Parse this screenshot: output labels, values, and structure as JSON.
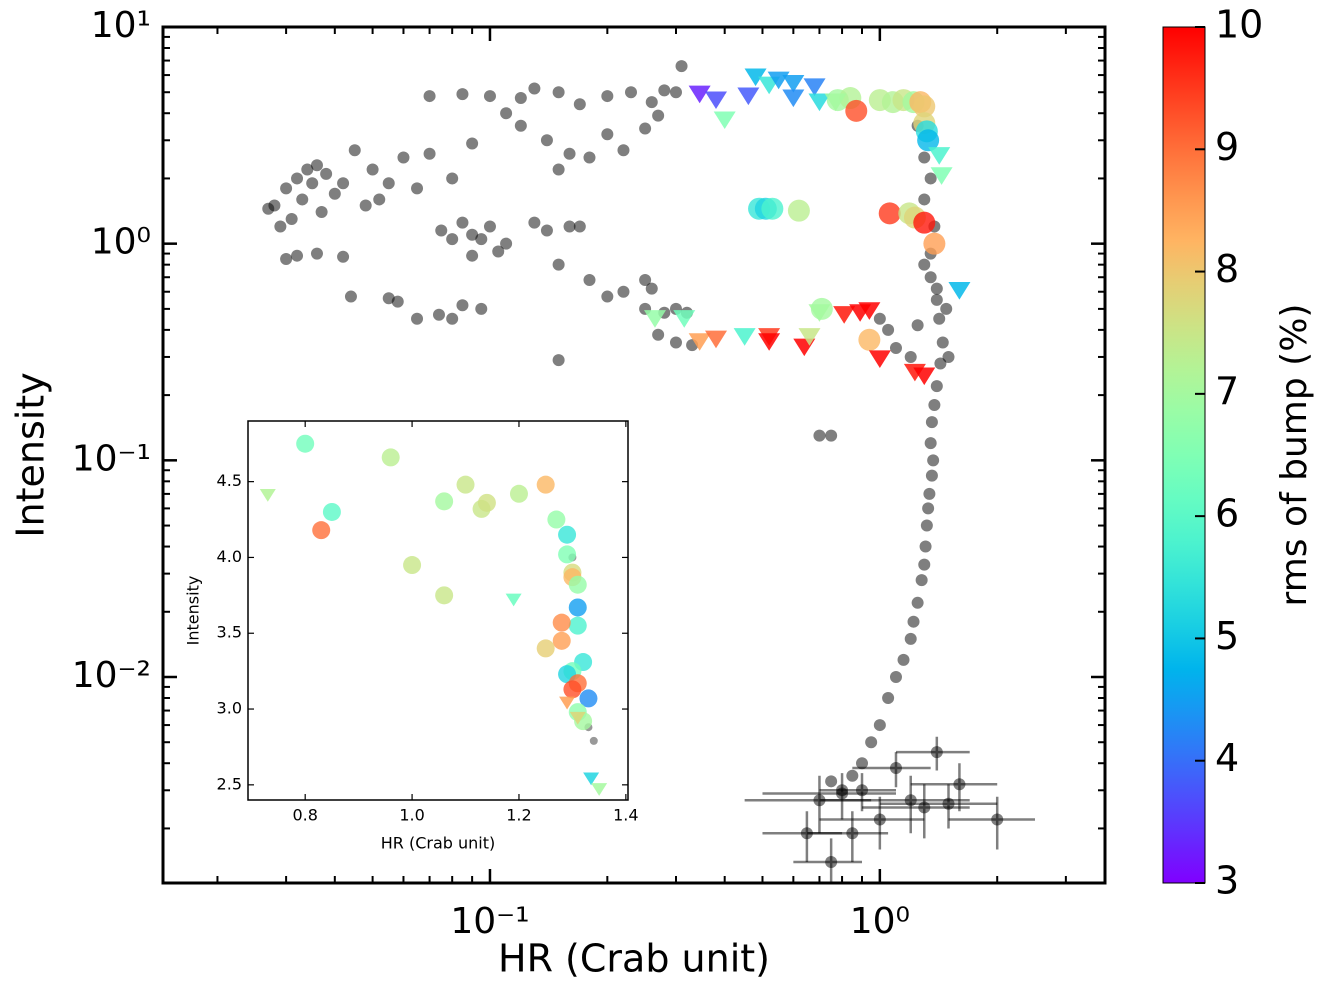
{
  "chart_data": [
    {
      "type": "scatter",
      "xlabel": "HR (Crab unit)",
      "ylabel": "Intensity",
      "xscale": "log",
      "yscale": "log",
      "xlim": [
        0.0145,
        3.78
      ],
      "ylim": [
        0.00112,
        10
      ],
      "xticks": [
        {
          "value": 0.1,
          "label": "10⁻¹"
        },
        {
          "value": 1,
          "label": "10⁰"
        }
      ],
      "yticks": [
        {
          "value": 0.01,
          "label": "10⁻²"
        },
        {
          "value": 0.1,
          "label": "10⁻¹"
        },
        {
          "value": 1,
          "label": "10⁰"
        },
        {
          "value": 10,
          "label": "10¹"
        }
      ],
      "colorbar": {
        "label": "rms of bump (%)",
        "colormap": "rainbow",
        "lim": [
          3,
          10
        ],
        "ticks": [
          3,
          4,
          5,
          6,
          7,
          8,
          9,
          10
        ]
      },
      "series": [
        {
          "marker": "circle",
          "color": "#000000",
          "alpha": 0.5,
          "x": [
            0.028,
            0.03,
            0.032,
            0.034,
            0.036,
            0.033,
            0.031,
            0.029,
            0.027,
            0.035,
            0.038,
            0.04,
            0.042,
            0.037,
            0.03,
            0.032,
            0.036,
            0.042,
            0.044,
            0.055,
            0.058,
            0.065,
            0.074,
            0.08,
            0.085,
            0.095,
            0.07,
            0.085,
            0.1,
            0.12,
            0.13,
            0.15,
            0.17,
            0.2,
            0.23,
            0.26,
            0.28,
            0.3,
            0.31,
            0.11,
            0.12,
            0.14,
            0.16,
            0.18,
            0.2,
            0.22,
            0.25,
            0.27,
            0.15,
            0.09,
            0.07,
            0.06,
            0.05,
            0.055,
            0.065,
            0.08,
            0.045,
            0.048,
            0.052,
            0.075,
            0.08,
            0.09,
            0.095,
            0.1,
            0.11,
            0.13,
            0.14,
            0.15,
            0.16,
            0.17,
            0.105,
            0.09,
            0.085,
            0.18,
            0.2,
            0.22,
            0.25,
            0.26,
            0.28,
            0.3,
            0.32,
            0.25,
            0.15,
            0.3,
            0.27,
            0.33,
            1.0,
            1.05,
            1.1,
            1.2,
            1.25,
            1.35,
            1.4,
            1.42,
            1.45,
            1.43,
            1.4,
            1.38,
            1.36,
            1.35,
            1.37,
            1.36,
            1.34,
            1.33,
            1.32,
            1.31,
            1.3,
            1.28,
            1.25,
            1.22,
            1.2,
            1.15,
            1.1,
            1.05,
            1.0,
            0.95,
            0.9,
            0.85,
            0.8,
            0.75,
            0.7,
            0.75,
            1.35,
            1.38,
            1.3,
            1.35,
            1.3,
            1.25,
            1.3,
            1.4,
            1.48,
            1.5
          ],
          "y": [
            1.5,
            1.8,
            2.0,
            2.2,
            2.3,
            1.6,
            1.3,
            1.2,
            1.45,
            1.9,
            2.1,
            1.7,
            1.9,
            1.4,
            0.85,
            0.88,
            0.9,
            0.87,
            0.57,
            0.56,
            0.54,
            0.45,
            0.47,
            0.45,
            0.52,
            0.5,
            4.8,
            4.9,
            4.8,
            4.7,
            5.2,
            5.0,
            4.4,
            4.8,
            5.0,
            4.5,
            5.1,
            5.0,
            6.6,
            4.0,
            3.5,
            3.0,
            2.6,
            2.5,
            3.2,
            2.7,
            3.4,
            3.9,
            2.2,
            2.9,
            2.6,
            2.5,
            2.2,
            1.9,
            1.8,
            2.0,
            2.7,
            1.5,
            1.6,
            1.15,
            1.05,
            1.1,
            1.05,
            1.2,
            1.0,
            1.25,
            1.15,
            0.8,
            1.2,
            1.2,
            0.92,
            0.88,
            1.25,
            0.68,
            0.57,
            0.6,
            0.68,
            0.62,
            0.48,
            0.5,
            0.48,
            0.5,
            0.29,
            0.35,
            0.38,
            0.34,
            0.45,
            0.4,
            0.33,
            0.3,
            0.42,
            0.7,
            0.55,
            0.45,
            0.35,
            0.28,
            0.22,
            0.18,
            0.15,
            0.12,
            0.1,
            0.085,
            0.07,
            0.06,
            0.05,
            0.04,
            0.033,
            0.028,
            0.022,
            0.018,
            0.015,
            0.012,
            0.01,
            0.008,
            0.006,
            0.005,
            0.004,
            0.0035,
            0.003,
            0.0033,
            0.13,
            0.13,
            0.9,
            1.2,
            1.6,
            2.0,
            2.5,
            3.5,
            0.8,
            0.62,
            0.5,
            0.3
          ]
        },
        {
          "marker": "circle",
          "color": "#000000",
          "alpha": 0.5,
          "x": [
            0.7,
            0.8,
            0.9,
            1.2,
            1.5,
            1.3,
            0.65,
            0.75,
            0.85,
            1.0,
            1.6,
            2.0,
            1.4,
            1.1
          ],
          "y": [
            0.0027,
            0.0029,
            0.003,
            0.0027,
            0.0026,
            0.0025,
            0.0019,
            0.0014,
            0.0019,
            0.0022,
            0.0032,
            0.0022,
            0.0045,
            0.0038
          ],
          "xerr": [
            0.25,
            0.3,
            0.2,
            0.5,
            0.5,
            0.4,
            0.15,
            0.15,
            0.2,
            0.3,
            0.4,
            0.5,
            0.3,
            0.25
          ],
          "yerr": [
            0.0008,
            0.0007,
            0.0006,
            0.0008,
            0.0006,
            0.0007,
            0.0005,
            0.0004,
            0.0005,
            0.0006,
            0.0008,
            0.0006,
            0.0008,
            0.0007
          ]
        },
        {
          "marker": "circle",
          "alpha": 0.8,
          "x": [
            0.78,
            0.84,
            1.0,
            1.08,
            1.15,
            1.22,
            1.27,
            1.3,
            1.3,
            1.32,
            1.33,
            0.87,
            0.49,
            0.51,
            0.53,
            0.62,
            1.06,
            1.19,
            1.23,
            1.3,
            1.38,
            0.71,
            0.94
          ],
          "y": [
            4.6,
            4.7,
            4.6,
            4.5,
            4.6,
            4.5,
            4.5,
            4.3,
            3.6,
            3.3,
            3.0,
            4.1,
            1.45,
            1.45,
            1.45,
            1.42,
            1.38,
            1.38,
            1.32,
            1.25,
            1.0,
            0.5,
            0.36
          ],
          "c": [
            7,
            7.2,
            7.3,
            7.2,
            7.5,
            7.0,
            8.2,
            8.0,
            7.8,
            5.3,
            4.8,
            9.3,
            5.5,
            5.2,
            5.8,
            7.3,
            9.5,
            7.5,
            7.8,
            9.8,
            8.5,
            7,
            8.2
          ]
        },
        {
          "marker": "triangle-down",
          "alpha": 0.85,
          "x": [
            0.345,
            0.38,
            0.4,
            0.46,
            0.48,
            0.52,
            0.55,
            0.6,
            0.6,
            0.68,
            0.7,
            0.77,
            1.42,
            1.44,
            1.6,
            0.265,
            0.315,
            0.345,
            0.38,
            0.45,
            0.52,
            0.52,
            0.64,
            0.66,
            0.7,
            0.81,
            0.89,
            0.94,
            1.0,
            1.23,
            1.3
          ],
          "y": [
            5.0,
            4.7,
            3.8,
            4.9,
            6.0,
            5.5,
            5.8,
            5.6,
            4.8,
            5.4,
            4.6,
            4.6,
            2.6,
            2.1,
            0.62,
            0.46,
            0.46,
            0.36,
            0.37,
            0.38,
            0.38,
            0.36,
            0.34,
            0.38,
            0.49,
            0.48,
            0.49,
            0.5,
            0.3,
            0.26,
            0.25
          ],
          "c": [
            3.3,
            3.7,
            6.5,
            3.8,
            4.8,
            5.5,
            4.5,
            4.5,
            4.3,
            4.2,
            5.3,
            7.0,
            5.8,
            6.5,
            4.8,
            6.8,
            6.3,
            8.5,
            9.0,
            5.8,
            9.5,
            10,
            10,
            7.5,
            7.0,
            9.8,
            10,
            10,
            10,
            9.8,
            10
          ]
        }
      ]
    },
    {
      "type": "scatter",
      "xlabel": "HR (Crab unit)",
      "ylabel": "Intensity",
      "xlim": [
        0.693,
        1.404
      ],
      "ylim": [
        2.4,
        4.9
      ],
      "xticks": [
        0.8,
        {
          "value": 1,
          "label": "1.0"
        },
        1.2,
        1.4
      ],
      "yticks": [
        2.5,
        {
          "value": 3,
          "label": "3.0"
        },
        3.5,
        {
          "value": 4,
          "label": "4.0"
        },
        4.5
      ],
      "series": [
        {
          "marker": "circle",
          "color": "#000000",
          "alpha": 0.4,
          "x": [
            1.34,
            1.33,
            1.3
          ],
          "y": [
            2.79,
            2.88,
            4.0
          ]
        },
        {
          "marker": "circle",
          "alpha": 0.8,
          "x": [
            0.8,
            0.96,
            0.83,
            0.85,
            1.0,
            1.06,
            1.06,
            1.1,
            1.13,
            1.14,
            1.2,
            1.25,
            1.27,
            1.29,
            1.29,
            1.3,
            1.3,
            1.31,
            1.31,
            1.31,
            1.28,
            1.28,
            1.25,
            1.32,
            1.3,
            1.29,
            1.31,
            1.3,
            1.33,
            1.31,
            1.32
          ],
          "y": [
            4.75,
            4.66,
            4.18,
            4.3,
            3.95,
            3.75,
            4.37,
            4.48,
            4.32,
            4.36,
            4.42,
            4.48,
            4.25,
            4.15,
            4.02,
            3.9,
            3.87,
            3.82,
            3.67,
            3.55,
            3.57,
            3.45,
            3.4,
            3.31,
            3.25,
            3.23,
            3.17,
            3.13,
            3.07,
            2.98,
            2.92
          ],
          "c": [
            6.3,
            7.3,
            9.0,
            6.0,
            7.5,
            7.5,
            7.0,
            7.5,
            7.5,
            7.6,
            7.3,
            8.2,
            6.8,
            5.5,
            6.5,
            7.7,
            8.2,
            6.8,
            4.5,
            5.8,
            8.7,
            8.5,
            7.9,
            5.5,
            6.3,
            5.2,
            9.0,
            9.3,
            4.3,
            6.7,
            7
          ]
        },
        {
          "marker": "triangle-down",
          "alpha": 0.85,
          "x": [
            0.73,
            1.19,
            1.29,
            1.31,
            1.335,
            1.35
          ],
          "y": [
            4.42,
            3.73,
            3.05,
            2.95,
            2.55,
            2.48
          ],
          "c": [
            7.2,
            6.2,
            8.5,
            7.8,
            5.2,
            7.0
          ]
        }
      ]
    }
  ]
}
